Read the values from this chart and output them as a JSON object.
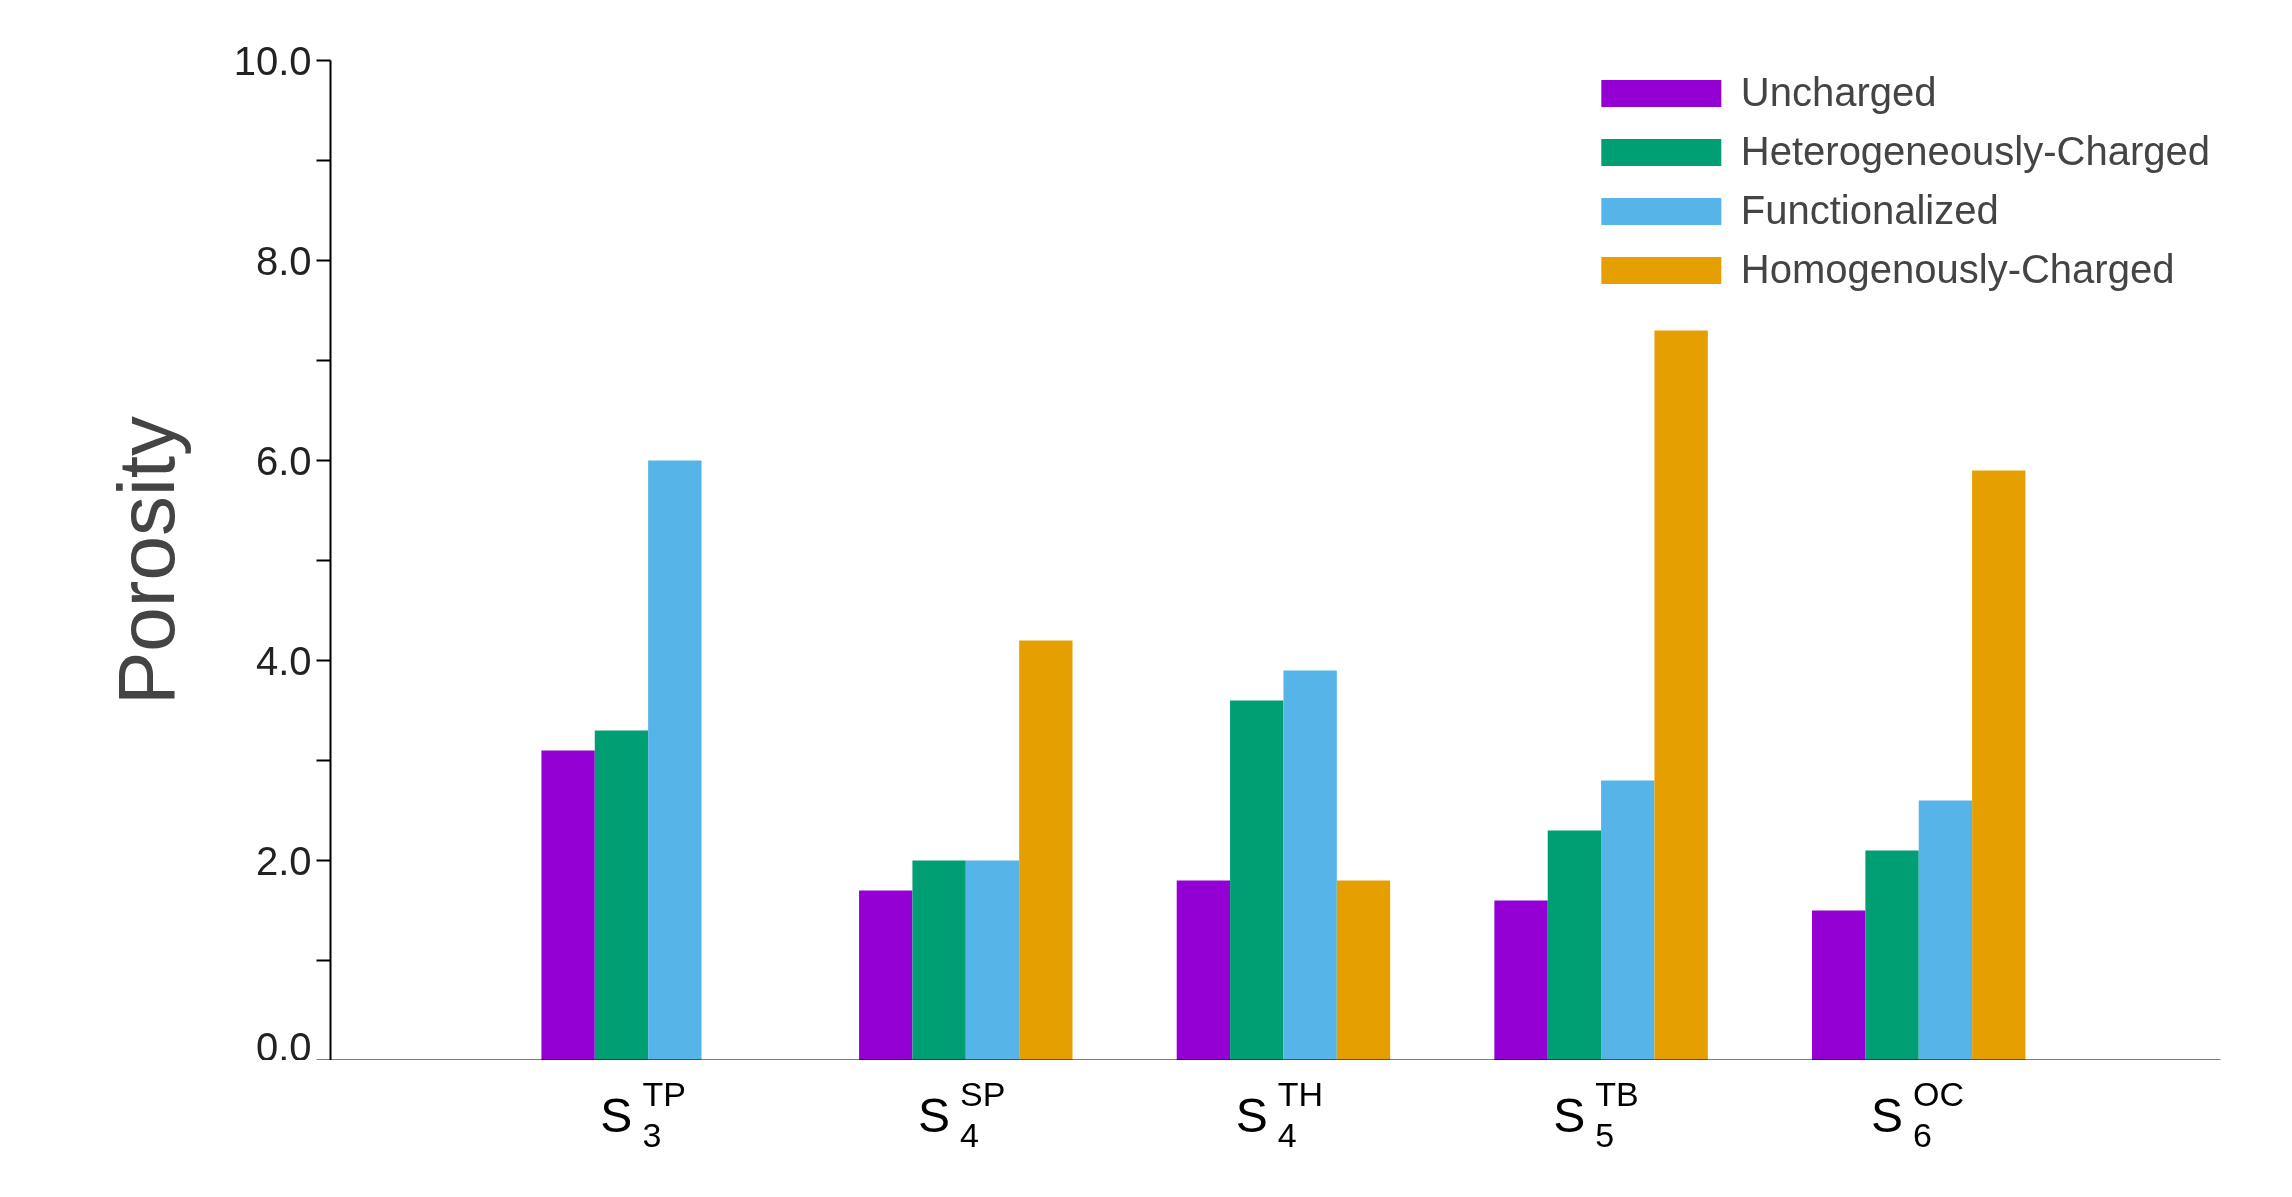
{
  "chart_data": {
    "type": "bar",
    "ylabel": "Porosity",
    "categories": [
      "S$_{3}$$^{TP}$",
      "S$_{4}$$^{SP}$",
      "S$_{4}$$^{TH}$",
      "S$_{5}$$^{TB}$",
      "S$_{6}$$^{OC}$"
    ],
    "series": [
      {
        "name": "Uncharged",
        "color": "#9400d3",
        "values": [
          3.1,
          1.7,
          1.8,
          1.6,
          1.5
        ]
      },
      {
        "name": "Heterogeneously-Charged",
        "color": "#009e73",
        "values": [
          3.3,
          2.0,
          3.6,
          2.3,
          2.1
        ]
      },
      {
        "name": "Functionalized",
        "color": "#56b4e9",
        "values": [
          6.0,
          2.0,
          3.9,
          2.8,
          2.6
        ]
      },
      {
        "name": "Homogenously-Charged",
        "color": "#e69f00",
        "values": [
          null,
          4.2,
          1.8,
          7.3,
          5.9
        ]
      }
    ],
    "ylim": [
      0,
      10
    ],
    "yticks": [
      {
        "value": 0,
        "label": "0.0"
      },
      {
        "value": 1,
        "label": null
      },
      {
        "value": 2,
        "label": "2.0"
      },
      {
        "value": 3,
        "label": null
      },
      {
        "value": 4,
        "label": "4.0"
      },
      {
        "value": 5,
        "label": null
      },
      {
        "value": 6,
        "label": "6.0"
      },
      {
        "value": 7,
        "label": null
      },
      {
        "value": 8,
        "label": "8.0"
      },
      {
        "value": 9,
        "label": null
      },
      {
        "value": 10,
        "label": "10.0"
      }
    ],
    "grid": false,
    "legend": "top right"
  }
}
